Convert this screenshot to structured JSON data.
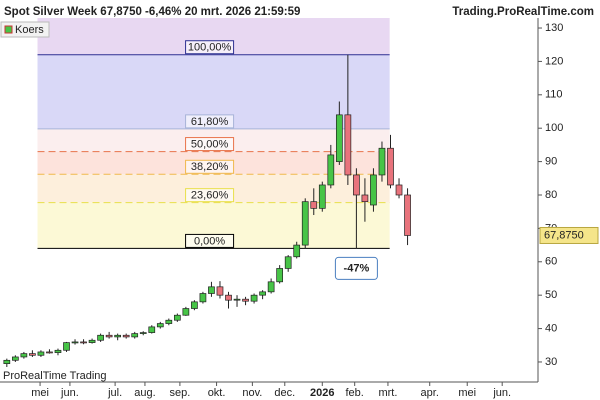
{
  "chart_data": {
    "type": "candlestick",
    "title": "Spot  Silver Week 67,8750 -6,46% 20 mrt. 2026 21:59:59",
    "site": "Trading.ProRealTime.com",
    "footer": "ProRealTime Trading",
    "legend": "Koers",
    "x": [
      0,
      1,
      2,
      3,
      4,
      5,
      6,
      7,
      8,
      9,
      10,
      11,
      12,
      13,
      14,
      15,
      16,
      17,
      18,
      19,
      20,
      21,
      22,
      23,
      24,
      25,
      26,
      27,
      28,
      29,
      30,
      31,
      32,
      33,
      34,
      35,
      36,
      37,
      38,
      39,
      40,
      41,
      42,
      43,
      44,
      45,
      46,
      47
    ],
    "open": [
      29.5,
      30.5,
      31.5,
      32.5,
      32,
      33,
      32.8,
      33.5,
      35.8,
      36,
      35.8,
      36.5,
      38,
      37.5,
      38,
      37.5,
      38.5,
      38.8,
      40.5,
      41.5,
      42.5,
      44,
      46,
      48,
      50.5,
      52.5,
      50,
      48.5,
      48.8,
      48.2,
      50,
      51,
      54,
      58,
      61.5,
      65,
      78,
      76,
      83,
      90,
      104,
      86,
      80,
      77,
      86,
      94,
      83,
      80
    ],
    "high": [
      31,
      32,
      33,
      33.5,
      33.5,
      33.8,
      34,
      36,
      36.8,
      36.8,
      37,
      38.5,
      39,
      38.5,
      38.5,
      39,
      39.2,
      41,
      42,
      43,
      44.5,
      46.5,
      48.5,
      51,
      54,
      54.2,
      51,
      50,
      49.5,
      50.5,
      51.5,
      55,
      59,
      62,
      66,
      79,
      82,
      84,
      95,
      108,
      122,
      88,
      85,
      88,
      96,
      98,
      85,
      82
    ],
    "low": [
      28.5,
      30,
      31,
      31.5,
      31.5,
      32.5,
      32,
      33,
      35.2,
      35.3,
      35.5,
      36,
      37,
      36.5,
      37,
      37,
      38,
      38.5,
      40,
      41,
      42,
      43.8,
      45.5,
      47.5,
      49.5,
      49,
      46,
      46.5,
      47,
      47.5,
      48.8,
      50.5,
      53.5,
      57,
      61,
      64,
      74,
      75,
      82,
      89,
      83,
      64,
      72,
      75,
      84,
      82,
      79,
      65
    ],
    "close": [
      30.5,
      31.5,
      32.5,
      32,
      33,
      32.8,
      33.5,
      35.8,
      36,
      35.8,
      36.5,
      38,
      37.5,
      38,
      37.5,
      38.5,
      38.8,
      40.5,
      41.5,
      42.5,
      44,
      46,
      48,
      50.5,
      52.5,
      50,
      48.5,
      48.8,
      48.2,
      50,
      51,
      54,
      58,
      61.5,
      65,
      78,
      76,
      83,
      92,
      104,
      86,
      80,
      78,
      86,
      94,
      83,
      80,
      67.875
    ],
    "up_color": "#47c447",
    "down_color": "#e8737c",
    "last_price_label": "67,8750",
    "change_label": "-47%",
    "fib_x": [
      3.6,
      44.9
    ],
    "fib_levels": [
      {
        "value": 122,
        "label": "100,00%",
        "color": "#2e3192",
        "zone": "#d9d8f7"
      },
      {
        "value": 99.8,
        "label": "61,80%",
        "color": "#a8b4d8",
        "zone": "#fbeeee"
      },
      {
        "value": 93,
        "label": "50,00%",
        "color": "#e8734a",
        "zone": "#fde3dc"
      },
      {
        "value": 86.2,
        "label": "38,20%",
        "color": "#f0b84c",
        "zone": "#fdefdc"
      },
      {
        "value": 77.7,
        "label": "23,60%",
        "color": "#e8e04a",
        "zone": "#fcf9d6"
      },
      {
        "value": 64,
        "label": "0,00%",
        "color": "#000000",
        "zone": "#ffffff"
      }
    ],
    "top_zone": "#e8d8f2",
    "xlim": [
      -0.8,
      62.3
    ],
    "ylim": [
      24,
      133
    ],
    "yticks": [
      30,
      40,
      50,
      60,
      70,
      80,
      90,
      100,
      110,
      120,
      130
    ],
    "xticks": [
      {
        "value": 3.9,
        "label": "mei"
      },
      {
        "value": 7.4,
        "label": "jun."
      },
      {
        "value": 12.7,
        "label": "jul."
      },
      {
        "value": 16.2,
        "label": "aug."
      },
      {
        "value": 20.3,
        "label": "sep."
      },
      {
        "value": 24.6,
        "label": "okt."
      },
      {
        "value": 28.8,
        "label": "nov."
      },
      {
        "value": 32.6,
        "label": "dec."
      },
      {
        "value": 37,
        "label": "2026"
      },
      {
        "value": 40.8,
        "label": "feb."
      },
      {
        "value": 44.7,
        "label": "mrt."
      },
      {
        "value": 49.6,
        "label": "apr."
      },
      {
        "value": 54,
        "label": "mei"
      },
      {
        "value": 58.1,
        "label": "jun."
      }
    ]
  }
}
